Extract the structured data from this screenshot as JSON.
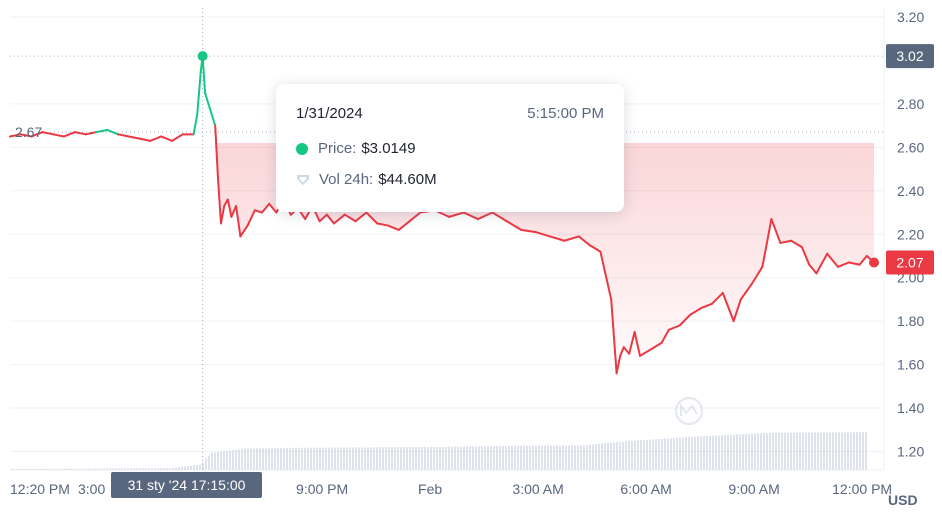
{
  "chart_data": {
    "type": "area",
    "price_unit": "USD",
    "y_ticks": [
      "3.20",
      "2.80",
      "2.60",
      "2.40",
      "2.20",
      "2.00",
      "1.80",
      "1.60",
      "1.40",
      "1.20"
    ],
    "ylim": [
      1.1,
      3.22
    ],
    "x_ticks": [
      {
        "label": "12:20 PM",
        "t": 0.0
      },
      {
        "label": "3:00",
        "t": 2.67
      },
      {
        "label": "9:00 PM",
        "t": 8.67
      },
      {
        "label": "Feb",
        "t": 11.67
      },
      {
        "label": "3:00 AM",
        "t": 14.67
      },
      {
        "label": "6:00 AM",
        "t": 17.67
      },
      {
        "label": "9:00 AM",
        "t": 20.67
      },
      {
        "label": "12:00 PM",
        "t": 23.67
      }
    ],
    "baseline": {
      "label": "2.67",
      "value": 2.67
    },
    "hover": {
      "label": "3.02",
      "value": 3.02,
      "x_label": "31 sty '24   17:15:00"
    },
    "last": {
      "label": "2.07",
      "value": 2.07
    },
    "series": [
      {
        "values": [
          [
            0.0,
            2.65
          ],
          [
            0.3,
            2.66
          ],
          [
            0.6,
            2.65
          ],
          [
            0.9,
            2.67
          ],
          [
            1.2,
            2.66
          ],
          [
            1.5,
            2.65
          ],
          [
            1.8,
            2.67
          ],
          [
            2.1,
            2.66
          ],
          [
            2.4,
            2.67
          ],
          [
            2.7,
            2.68
          ],
          [
            3.0,
            2.66
          ],
          [
            3.3,
            2.65
          ],
          [
            3.6,
            2.64
          ],
          [
            3.9,
            2.63
          ],
          [
            4.2,
            2.65
          ],
          [
            4.5,
            2.63
          ],
          [
            4.8,
            2.66
          ],
          [
            5.1,
            2.66
          ],
          [
            5.2,
            2.75
          ],
          [
            5.3,
            2.95
          ],
          [
            5.35,
            3.02
          ],
          [
            5.42,
            2.85
          ],
          [
            5.55,
            2.78
          ],
          [
            5.7,
            2.7
          ],
          [
            5.78,
            2.45
          ],
          [
            5.86,
            2.25
          ],
          [
            5.95,
            2.33
          ],
          [
            6.05,
            2.36
          ],
          [
            6.15,
            2.28
          ],
          [
            6.28,
            2.33
          ],
          [
            6.4,
            2.19
          ],
          [
            6.6,
            2.24
          ],
          [
            6.8,
            2.31
          ],
          [
            7.0,
            2.3
          ],
          [
            7.2,
            2.34
          ],
          [
            7.4,
            2.3
          ],
          [
            7.6,
            2.36
          ],
          [
            7.8,
            2.29
          ],
          [
            8.0,
            2.32
          ],
          [
            8.2,
            2.27
          ],
          [
            8.4,
            2.33
          ],
          [
            8.6,
            2.26
          ],
          [
            8.8,
            2.29
          ],
          [
            9.0,
            2.25
          ],
          [
            9.3,
            2.29
          ],
          [
            9.6,
            2.26
          ],
          [
            9.9,
            2.3
          ],
          [
            10.2,
            2.25
          ],
          [
            10.5,
            2.24
          ],
          [
            10.8,
            2.22
          ],
          [
            11.1,
            2.26
          ],
          [
            11.4,
            2.3
          ],
          [
            11.8,
            2.31
          ],
          [
            12.2,
            2.28
          ],
          [
            12.6,
            2.3
          ],
          [
            13.0,
            2.27
          ],
          [
            13.4,
            2.3
          ],
          [
            13.8,
            2.26
          ],
          [
            14.2,
            2.22
          ],
          [
            14.6,
            2.21
          ],
          [
            15.0,
            2.19
          ],
          [
            15.4,
            2.17
          ],
          [
            15.8,
            2.19
          ],
          [
            16.1,
            2.15
          ],
          [
            16.4,
            2.12
          ],
          [
            16.7,
            1.9
          ],
          [
            16.85,
            1.56
          ],
          [
            16.95,
            1.64
          ],
          [
            17.05,
            1.68
          ],
          [
            17.2,
            1.65
          ],
          [
            17.35,
            1.75
          ],
          [
            17.5,
            1.64
          ],
          [
            17.7,
            1.66
          ],
          [
            17.9,
            1.68
          ],
          [
            18.1,
            1.7
          ],
          [
            18.3,
            1.76
          ],
          [
            18.6,
            1.78
          ],
          [
            18.9,
            1.83
          ],
          [
            19.2,
            1.86
          ],
          [
            19.5,
            1.88
          ],
          [
            19.8,
            1.93
          ],
          [
            20.1,
            1.8
          ],
          [
            20.3,
            1.9
          ],
          [
            20.6,
            1.97
          ],
          [
            20.9,
            2.05
          ],
          [
            21.15,
            2.27
          ],
          [
            21.4,
            2.16
          ],
          [
            21.7,
            2.17
          ],
          [
            22.0,
            2.14
          ],
          [
            22.2,
            2.06
          ],
          [
            22.4,
            2.02
          ],
          [
            22.7,
            2.11
          ],
          [
            23.0,
            2.05
          ],
          [
            23.3,
            2.07
          ],
          [
            23.6,
            2.06
          ],
          [
            23.8,
            2.1
          ],
          [
            24.0,
            2.07
          ]
        ]
      }
    ],
    "volume": {
      "values": [
        [
          0.0,
          44.0
        ],
        [
          4.5,
          44.2
        ],
        [
          5.3,
          45.0
        ],
        [
          5.6,
          47.5
        ],
        [
          6.5,
          48.4
        ],
        [
          8.0,
          48.6
        ],
        [
          10.0,
          48.7
        ],
        [
          12.0,
          48.8
        ],
        [
          14.0,
          49.0
        ],
        [
          16.0,
          49.1
        ],
        [
          16.5,
          49.6
        ],
        [
          17.5,
          50.2
        ],
        [
          19.0,
          51.0
        ],
        [
          21.0,
          51.8
        ],
        [
          24.0,
          52.0
        ]
      ],
      "ylim": [
        43.8,
        60.0
      ]
    }
  },
  "tooltip": {
    "date": "1/31/2024",
    "time": "5:15:00 PM",
    "price_label": "Price:",
    "price_value": "$3.0149",
    "vol_label": "Vol 24h:",
    "vol_value": "$44.60M"
  },
  "colors": {
    "up": "#16c784",
    "down": "#ea3943",
    "grid": "#eff2f5",
    "label": "#58667e",
    "axis_tag": "#58667e"
  }
}
